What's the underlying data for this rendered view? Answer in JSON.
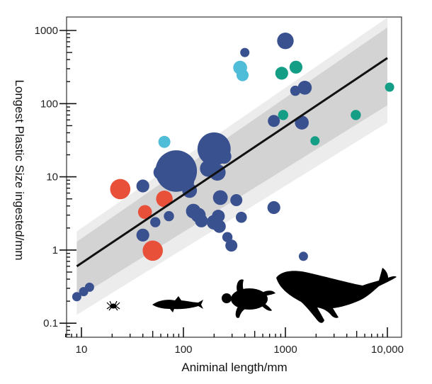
{
  "chart_data": {
    "type": "scatter",
    "title": "",
    "xlabel": "Animinal length/mm",
    "ylabel": "Longest Plastic Size ingested/mm",
    "xscale": "log",
    "yscale": "log",
    "xlim": [
      7,
      14000
    ],
    "ylim": [
      0.07,
      1500
    ],
    "xticks": [
      {
        "value": 10,
        "label": "10"
      },
      {
        "value": 100,
        "label": "100"
      },
      {
        "value": 1000,
        "label": "1000"
      },
      {
        "value": 10000,
        "label": "10,000"
      }
    ],
    "yticks": [
      {
        "value": 0.1,
        "label": "0.1"
      },
      {
        "value": 1,
        "label": "1"
      },
      {
        "value": 10,
        "label": "10"
      },
      {
        "value": 100,
        "label": "100"
      },
      {
        "value": 1000,
        "label": "1000"
      }
    ],
    "grid": false,
    "colors": {
      "navy": "#3a5190",
      "red": "#e8503a",
      "lightblue": "#4fbcd8",
      "teal": "#159e86",
      "band_outer": "#ececec",
      "band_inner": "#d3d3d3",
      "line": "#111111"
    },
    "fit_line": {
      "x": [
        9,
        10000
      ],
      "y": [
        0.6,
        420
      ]
    },
    "confidence_band_outer": {
      "x": [
        9,
        10000
      ],
      "lower": [
        0.13,
        55
      ],
      "upper": [
        1.8,
        1500
      ]
    },
    "confidence_band_inner": {
      "x": [
        9,
        10000
      ],
      "lower": [
        0.22,
        95
      ],
      "upper": [
        1.3,
        1100
      ]
    },
    "series": [
      {
        "name": "navy",
        "color": "#3a5190",
        "points": [
          {
            "x": 9,
            "y": 0.23,
            "size": 1
          },
          {
            "x": 10.5,
            "y": 0.27,
            "size": 1
          },
          {
            "x": 12,
            "y": 0.31,
            "size": 1
          },
          {
            "x": 40,
            "y": 7.5,
            "size": 1.4
          },
          {
            "x": 40,
            "y": 1.6,
            "size": 1.4
          },
          {
            "x": 53,
            "y": 2.4,
            "size": 1.1
          },
          {
            "x": 72,
            "y": 2.9,
            "size": 1.1
          },
          {
            "x": 85,
            "y": 12,
            "size": 4.5
          },
          {
            "x": 60,
            "y": 11.5,
            "size": 1.6
          },
          {
            "x": 110,
            "y": 11,
            "size": 1.6
          },
          {
            "x": 115,
            "y": 6.5,
            "size": 1.6
          },
          {
            "x": 110,
            "y": 8.5,
            "size": 1.4
          },
          {
            "x": 200,
            "y": 24,
            "size": 3.6
          },
          {
            "x": 250,
            "y": 19,
            "size": 1.6
          },
          {
            "x": 175,
            "y": 13,
            "size": 1.8
          },
          {
            "x": 215,
            "y": 11.5,
            "size": 1.8
          },
          {
            "x": 230,
            "y": 5.2,
            "size": 1.6
          },
          {
            "x": 330,
            "y": 4.8,
            "size": 1.3
          },
          {
            "x": 125,
            "y": 3.4,
            "size": 1.6
          },
          {
            "x": 140,
            "y": 3.0,
            "size": 1.6
          },
          {
            "x": 150,
            "y": 2.5,
            "size": 1.4
          },
          {
            "x": 200,
            "y": 2.4,
            "size": 1.6
          },
          {
            "x": 220,
            "y": 2.9,
            "size": 1.4
          },
          {
            "x": 225,
            "y": 2.1,
            "size": 1.4
          },
          {
            "x": 270,
            "y": 1.5,
            "size": 1.1
          },
          {
            "x": 295,
            "y": 1.15,
            "size": 1.3
          },
          {
            "x": 370,
            "y": 2.8,
            "size": 1.2
          },
          {
            "x": 770,
            "y": 3.8,
            "size": 1.4
          },
          {
            "x": 1500,
            "y": 0.82,
            "size": 1
          },
          {
            "x": 400,
            "y": 500,
            "size": 1
          },
          {
            "x": 1000,
            "y": 720,
            "size": 1.8
          },
          {
            "x": 1250,
            "y": 150,
            "size": 1.1
          },
          {
            "x": 1550,
            "y": 165,
            "size": 1.5
          },
          {
            "x": 770,
            "y": 58,
            "size": 1.3
          },
          {
            "x": 1450,
            "y": 55,
            "size": 1.5
          }
        ]
      },
      {
        "name": "red",
        "color": "#e8503a",
        "points": [
          {
            "x": 24,
            "y": 6.8,
            "size": 2.2
          },
          {
            "x": 42,
            "y": 3.3,
            "size": 1.5
          },
          {
            "x": 65,
            "y": 5.0,
            "size": 1.8
          },
          {
            "x": 50,
            "y": 0.98,
            "size": 2.2
          }
        ]
      },
      {
        "name": "lightblue",
        "color": "#4fbcd8",
        "points": [
          {
            "x": 65,
            "y": 30,
            "size": 1.3
          },
          {
            "x": 360,
            "y": 310,
            "size": 1.5
          },
          {
            "x": 380,
            "y": 245,
            "size": 1.3
          }
        ]
      },
      {
        "name": "teal",
        "color": "#159e86",
        "points": [
          {
            "x": 920,
            "y": 260,
            "size": 1.4
          },
          {
            "x": 1270,
            "y": 315,
            "size": 1.4
          },
          {
            "x": 950,
            "y": 70,
            "size": 1.1
          },
          {
            "x": 1950,
            "y": 31,
            "size": 1
          },
          {
            "x": 4900,
            "y": 70,
            "size": 1.1
          },
          {
            "x": 10500,
            "y": 168,
            "size": 1
          }
        ]
      }
    ],
    "silhouettes": [
      "crab",
      "fish",
      "turtle",
      "whale"
    ]
  }
}
